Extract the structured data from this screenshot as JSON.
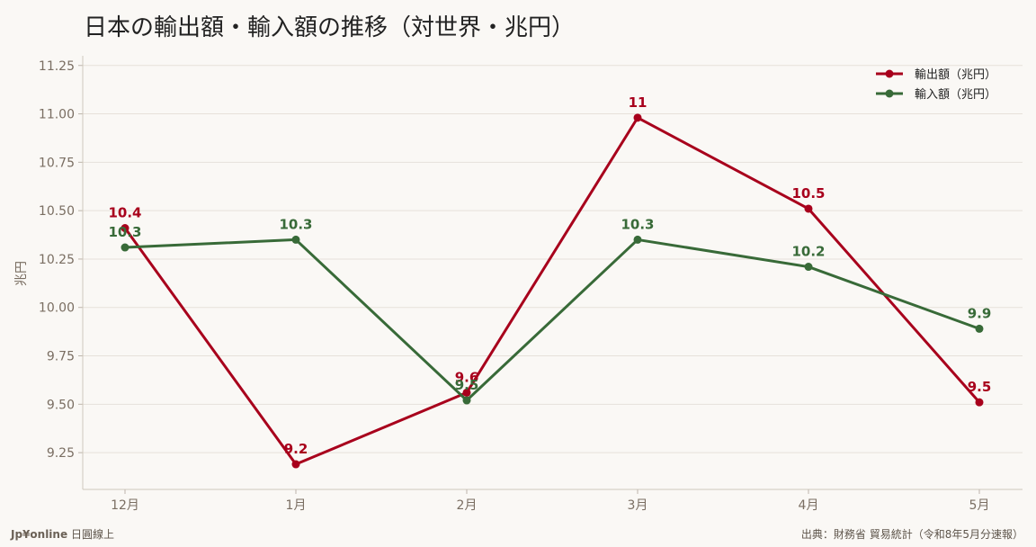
{
  "title": "日本の輸出額・輸入額の推移（対世界・兆円）",
  "chart_data": {
    "type": "line",
    "categories": [
      "12月",
      "1月",
      "2月",
      "3月",
      "4月",
      "5月"
    ],
    "series": [
      {
        "name": "輸出額（兆円）",
        "color": "#a8001c",
        "values": [
          10.41,
          9.19,
          9.56,
          10.98,
          10.51,
          9.51
        ],
        "labels": [
          "10.4",
          "9.2",
          "9.6",
          "11",
          "10.5",
          "9.5"
        ]
      },
      {
        "name": "輸入額（兆円）",
        "color": "#386a38",
        "values": [
          10.31,
          10.35,
          9.52,
          10.35,
          10.21,
          9.89
        ],
        "labels": [
          "10.3",
          "10.3",
          "9.5",
          "10.3",
          "10.2",
          "9.9"
        ]
      }
    ],
    "ylabel": "兆円",
    "xlabel": "",
    "ylim": [
      9.06,
      11.3
    ],
    "yticks": [
      "9.25",
      "9.50",
      "9.75",
      "10.00",
      "10.25",
      "10.50",
      "10.75",
      "11.00",
      "11.25"
    ],
    "grid": true,
    "legend_position": "top-right"
  },
  "footer": {
    "brand": "Jp¥online",
    "brand_sub": "日圓線上",
    "source": "出典：財務省 貿易統計（令和8年5月分速報）"
  }
}
